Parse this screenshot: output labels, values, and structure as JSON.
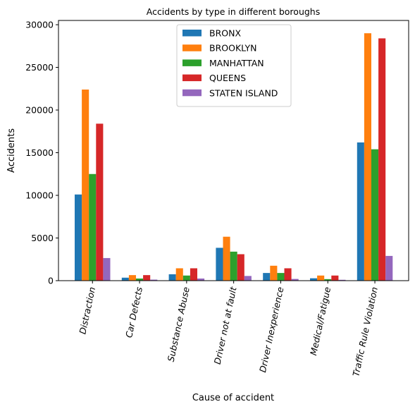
{
  "chart_data": {
    "type": "bar",
    "title": "Accidents by type in different boroughs",
    "xlabel": "Cause of accident",
    "ylabel": "Accidents",
    "ylim": [
      0,
      30500
    ],
    "yticks": [
      0,
      5000,
      10000,
      15000,
      20000,
      25000,
      30000
    ],
    "grid": false,
    "legend_position": "top-center",
    "categories": [
      "Distraction",
      "Car Defects",
      "Substance Abuse",
      "Driver not at fault",
      "Driver Inexperience",
      "Medical/Fatigue",
      "Traffic Rule Violation"
    ],
    "series": [
      {
        "name": "BRONX",
        "color": "#1f77b4",
        "values": [
          10100,
          350,
          750,
          3850,
          900,
          280,
          16200
        ]
      },
      {
        "name": "BROOKLYN",
        "color": "#ff7f0e",
        "values": [
          22400,
          650,
          1450,
          5150,
          1750,
          600,
          29000
        ]
      },
      {
        "name": "MANHATTAN",
        "color": "#2ca02c",
        "values": [
          12500,
          250,
          600,
          3400,
          900,
          180,
          15400
        ]
      },
      {
        "name": "QUEENS",
        "color": "#d62728",
        "values": [
          18400,
          650,
          1450,
          3100,
          1450,
          600,
          28400
        ]
      },
      {
        "name": "STATEN ISLAND",
        "color": "#9467bd",
        "values": [
          2650,
          120,
          250,
          550,
          200,
          100,
          2900
        ]
      }
    ]
  }
}
